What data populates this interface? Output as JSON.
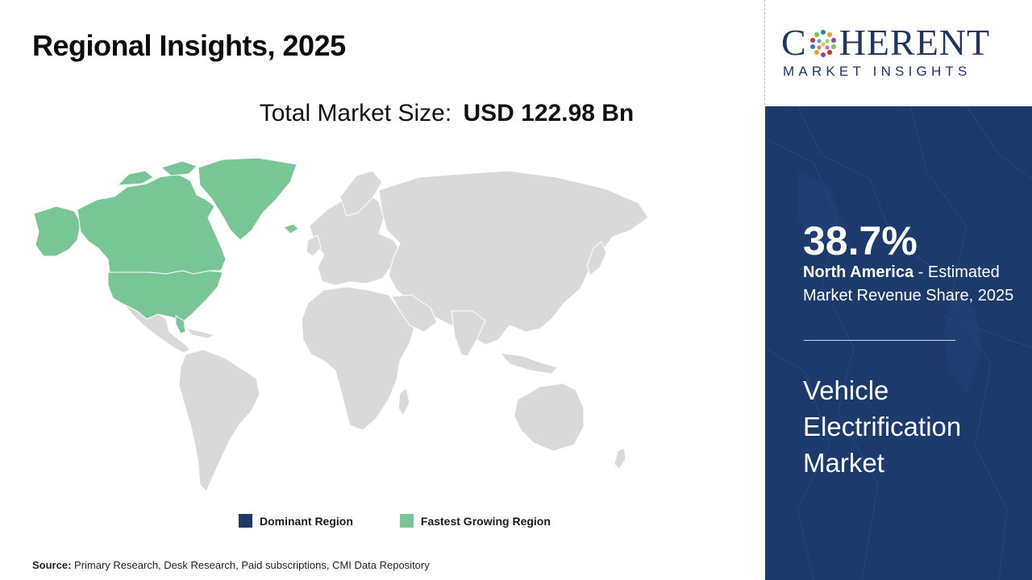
{
  "title": "Regional Insights, 2025",
  "market_size": {
    "label": "Total Market Size:",
    "value": "USD 122.98 Bn"
  },
  "legend": [
    {
      "label": "Dominant Region",
      "color": "#1f3864"
    },
    {
      "label": "Fastest Growing Region",
      "color": "#78c696"
    }
  ],
  "source": {
    "label": "Source:",
    "text": "Primary Research, Desk Research, Paid subscriptions, CMI Data Repository"
  },
  "logo": {
    "word_left": "C",
    "word_right": "HERENT",
    "subtitle": "MARKET INSIGHTS"
  },
  "stat": {
    "percent": "38.7%",
    "region": "North America",
    "description": " - Estimated Market Revenue Share, 2025"
  },
  "market_name": "Vehicle Electrification Market",
  "map": {
    "highlighted_region": "North America",
    "highlight_color": "#78c696",
    "base_color": "#d9d9d9"
  }
}
